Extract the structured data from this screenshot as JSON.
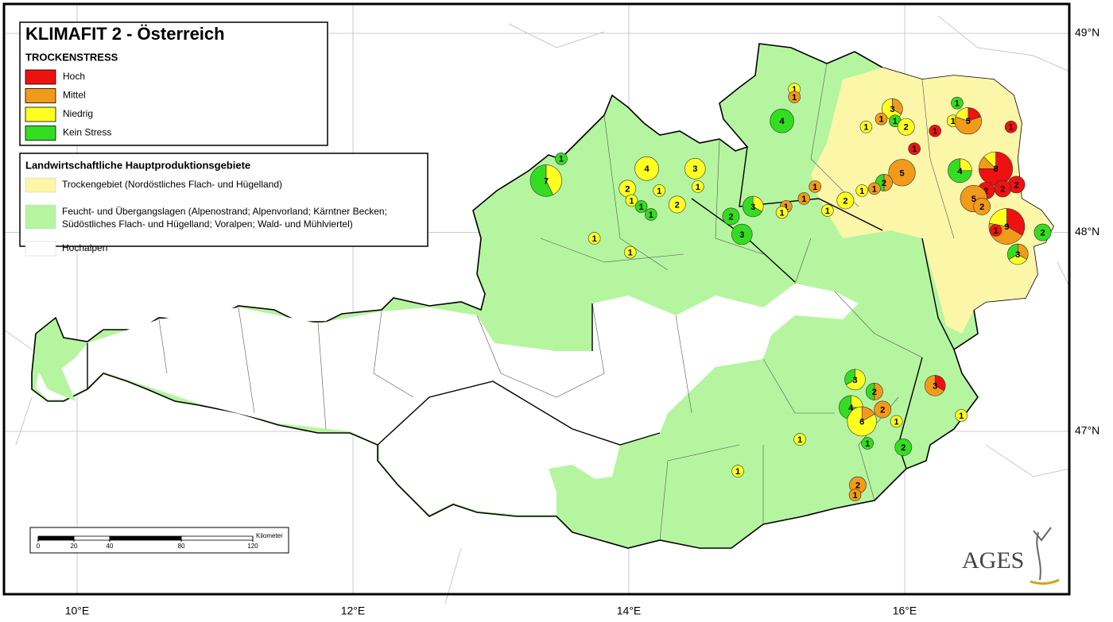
{
  "map": {
    "title": "KLIMAFIT 2 - Österreich",
    "stress_legend": {
      "title": "TROCKENSTRESS",
      "classes": [
        {
          "label": "Hoch",
          "color": "#ee1111"
        },
        {
          "label": "Mittel",
          "color": "#f29a1a"
        },
        {
          "label": "Niedrig",
          "color": "#ffff22"
        },
        {
          "label": "Kein Stress",
          "color": "#33dd22"
        }
      ]
    },
    "area_legend": {
      "title": "Landwirtschaftliche Hauptproduktionsgebiete",
      "items": [
        {
          "lines": [
            "Trockengebiet (Nordöstliches Flach- und Hügelland)"
          ],
          "color": "#fbf6a8"
        },
        {
          "lines": [
            "Feucht- und Übergangslagen (Alpenostrand; Alpenvorland; Kärntner Becken;",
            "Südöstliches Flach- und Hügelland; Voralpen; Wald- und Mühlviertel)"
          ],
          "color": "#b5f5a0"
        },
        {
          "lines": [
            "Hochalpen"
          ],
          "color": "#ffffff"
        }
      ]
    },
    "lon_ticks": [
      {
        "value": 10,
        "label": "10°E"
      },
      {
        "value": 12,
        "label": "12°E"
      },
      {
        "value": 14,
        "label": "14°E"
      },
      {
        "value": 16,
        "label": "16°E"
      }
    ],
    "lat_ticks": [
      {
        "value": 49,
        "label": "49°N"
      },
      {
        "value": 48,
        "label": "48°N"
      },
      {
        "value": 47,
        "label": "47°N"
      }
    ],
    "scale_bar": {
      "unit": "Kilometer",
      "ticks": [
        0,
        20,
        40,
        80,
        120
      ]
    },
    "logo": "AGES",
    "sites": [
      {
        "lon": 13.51,
        "lat": 48.37,
        "n": 1,
        "counts": [
          0,
          0,
          0,
          1
        ]
      },
      {
        "lon": 13.4,
        "lat": 48.26,
        "n": 7,
        "counts": [
          0,
          0,
          3,
          4
        ]
      },
      {
        "lon": 14.13,
        "lat": 48.32,
        "n": 4,
        "counts": [
          0,
          0,
          4,
          0
        ]
      },
      {
        "lon": 14.48,
        "lat": 48.32,
        "n": 3,
        "counts": [
          0,
          0,
          3,
          0
        ]
      },
      {
        "lon": 13.99,
        "lat": 48.22,
        "n": 2,
        "counts": [
          0,
          0,
          2,
          0
        ]
      },
      {
        "lon": 14.22,
        "lat": 48.21,
        "n": 1,
        "counts": [
          0,
          0,
          1,
          0
        ]
      },
      {
        "lon": 14.5,
        "lat": 48.23,
        "n": 1,
        "counts": [
          0,
          0,
          1,
          0
        ]
      },
      {
        "lon": 14.02,
        "lat": 48.16,
        "n": 1,
        "counts": [
          0,
          0,
          1,
          0
        ]
      },
      {
        "lon": 14.09,
        "lat": 48.13,
        "n": 1,
        "counts": [
          0,
          0,
          0,
          1
        ]
      },
      {
        "lon": 14.16,
        "lat": 48.09,
        "n": 1,
        "counts": [
          0,
          0,
          0,
          1
        ]
      },
      {
        "lon": 14.35,
        "lat": 48.14,
        "n": 2,
        "counts": [
          0,
          0,
          2,
          0
        ]
      },
      {
        "lon": 13.75,
        "lat": 47.97,
        "n": 1,
        "counts": [
          0,
          0,
          1,
          0
        ]
      },
      {
        "lon": 14.01,
        "lat": 47.9,
        "n": 1,
        "counts": [
          0,
          0,
          1,
          0
        ]
      },
      {
        "lon": 14.74,
        "lat": 48.08,
        "n": 2,
        "counts": [
          0,
          0,
          0,
          2
        ]
      },
      {
        "lon": 14.9,
        "lat": 48.13,
        "n": 3,
        "counts": [
          0,
          0,
          1,
          2
        ]
      },
      {
        "lon": 14.82,
        "lat": 47.99,
        "n": 3,
        "counts": [
          0,
          0,
          0,
          3
        ]
      },
      {
        "lon": 15.11,
        "lat": 48.56,
        "n": 4,
        "counts": [
          0,
          0,
          0,
          4
        ]
      },
      {
        "lon": 15.2,
        "lat": 48.72,
        "n": 1,
        "counts": [
          0,
          0,
          1,
          0
        ]
      },
      {
        "lon": 15.2,
        "lat": 48.68,
        "n": 1,
        "counts": [
          0,
          1,
          0,
          0
        ]
      },
      {
        "lon": 15.91,
        "lat": 48.62,
        "n": 3,
        "counts": [
          0,
          1,
          2,
          0
        ]
      },
      {
        "lon": 15.83,
        "lat": 48.57,
        "n": 1,
        "counts": [
          0,
          1,
          0,
          0
        ]
      },
      {
        "lon": 15.93,
        "lat": 48.56,
        "n": 1,
        "counts": [
          0,
          0,
          0,
          1
        ]
      },
      {
        "lon": 16.01,
        "lat": 48.53,
        "n": 2,
        "counts": [
          0,
          0,
          2,
          0
        ]
      },
      {
        "lon": 15.72,
        "lat": 48.53,
        "n": 1,
        "counts": [
          0,
          0,
          1,
          0
        ]
      },
      {
        "lon": 16.38,
        "lat": 48.65,
        "n": 1,
        "counts": [
          0,
          0,
          0,
          1
        ]
      },
      {
        "lon": 16.35,
        "lat": 48.56,
        "n": 1,
        "counts": [
          0,
          0,
          1,
          0
        ]
      },
      {
        "lon": 16.46,
        "lat": 48.56,
        "n": 5,
        "counts": [
          1,
          3,
          1,
          0
        ]
      },
      {
        "lon": 16.77,
        "lat": 48.53,
        "n": 1,
        "counts": [
          1,
          0,
          0,
          0
        ]
      },
      {
        "lon": 16.22,
        "lat": 48.51,
        "n": 1,
        "counts": [
          1,
          0,
          0,
          0
        ]
      },
      {
        "lon": 16.07,
        "lat": 48.42,
        "n": 1,
        "counts": [
          1,
          0,
          0,
          0
        ]
      },
      {
        "lon": 15.98,
        "lat": 48.3,
        "n": 5,
        "counts": [
          0,
          5,
          0,
          0
        ]
      },
      {
        "lon": 15.85,
        "lat": 48.25,
        "n": 2,
        "counts": [
          0,
          1,
          0,
          1
        ]
      },
      {
        "lon": 15.78,
        "lat": 48.22,
        "n": 1,
        "counts": [
          0,
          1,
          0,
          0
        ]
      },
      {
        "lon": 15.69,
        "lat": 48.21,
        "n": 1,
        "counts": [
          0,
          0,
          1,
          0
        ]
      },
      {
        "lon": 15.57,
        "lat": 48.16,
        "n": 2,
        "counts": [
          0,
          0,
          2,
          0
        ]
      },
      {
        "lon": 15.35,
        "lat": 48.23,
        "n": 1,
        "counts": [
          0,
          1,
          0,
          0
        ]
      },
      {
        "lon": 15.44,
        "lat": 48.11,
        "n": 1,
        "counts": [
          0,
          0,
          1,
          0
        ]
      },
      {
        "lon": 15.27,
        "lat": 48.17,
        "n": 1,
        "counts": [
          0,
          1,
          0,
          0
        ]
      },
      {
        "lon": 15.14,
        "lat": 48.13,
        "n": 1,
        "counts": [
          0,
          1,
          0,
          0
        ]
      },
      {
        "lon": 15.11,
        "lat": 48.1,
        "n": 1,
        "counts": [
          0,
          0,
          1,
          0
        ]
      },
      {
        "lon": 16.4,
        "lat": 48.31,
        "n": 4,
        "counts": [
          0,
          0,
          1,
          3
        ]
      },
      {
        "lon": 16.66,
        "lat": 48.32,
        "n": 8,
        "counts": [
          6,
          1,
          1,
          0
        ]
      },
      {
        "lon": 16.81,
        "lat": 48.24,
        "n": 2,
        "counts": [
          2,
          0,
          0,
          0
        ]
      },
      {
        "lon": 16.71,
        "lat": 48.22,
        "n": 2,
        "counts": [
          2,
          0,
          0,
          0
        ]
      },
      {
        "lon": 16.59,
        "lat": 48.21,
        "n": 2,
        "counts": [
          2,
          0,
          0,
          0
        ]
      },
      {
        "lon": 16.5,
        "lat": 48.17,
        "n": 5,
        "counts": [
          0,
          5,
          0,
          0
        ]
      },
      {
        "lon": 16.56,
        "lat": 48.13,
        "n": 2,
        "counts": [
          0,
          2,
          0,
          0
        ]
      },
      {
        "lon": 16.74,
        "lat": 48.03,
        "n": 9,
        "counts": [
          3,
          4,
          2,
          0
        ]
      },
      {
        "lon": 16.66,
        "lat": 48.01,
        "n": 1,
        "counts": [
          1,
          0,
          0,
          0
        ]
      },
      {
        "lon": 17.0,
        "lat": 48.0,
        "n": 2,
        "counts": [
          0,
          0,
          0,
          2
        ]
      },
      {
        "lon": 16.82,
        "lat": 47.89,
        "n": 3,
        "counts": [
          0,
          1,
          1,
          1
        ]
      },
      {
        "lon": 15.64,
        "lat": 47.26,
        "n": 3,
        "counts": [
          0,
          0,
          2,
          1
        ]
      },
      {
        "lon": 15.78,
        "lat": 47.2,
        "n": 2,
        "counts": [
          0,
          1,
          0,
          1
        ]
      },
      {
        "lon": 15.61,
        "lat": 47.12,
        "n": 4,
        "counts": [
          0,
          0,
          1,
          3
        ]
      },
      {
        "lon": 15.84,
        "lat": 47.11,
        "n": 2,
        "counts": [
          0,
          2,
          0,
          0
        ]
      },
      {
        "lon": 15.69,
        "lat": 47.05,
        "n": 6,
        "counts": [
          0,
          1,
          5,
          0
        ]
      },
      {
        "lon": 15.94,
        "lat": 47.05,
        "n": 1,
        "counts": [
          0,
          0,
          1,
          0
        ]
      },
      {
        "lon": 15.73,
        "lat": 46.94,
        "n": 1,
        "counts": [
          0,
          0,
          0,
          1
        ]
      },
      {
        "lon": 15.24,
        "lat": 46.96,
        "n": 1,
        "counts": [
          0,
          0,
          1,
          0
        ]
      },
      {
        "lon": 15.99,
        "lat": 46.92,
        "n": 2,
        "counts": [
          0,
          0,
          0,
          2
        ]
      },
      {
        "lon": 16.22,
        "lat": 47.23,
        "n": 3,
        "counts": [
          1,
          2,
          0,
          0
        ]
      },
      {
        "lon": 16.41,
        "lat": 47.08,
        "n": 1,
        "counts": [
          0,
          0,
          1,
          0
        ]
      },
      {
        "lon": 14.79,
        "lat": 46.8,
        "n": 1,
        "counts": [
          0,
          0,
          1,
          0
        ]
      },
      {
        "lon": 15.66,
        "lat": 46.73,
        "n": 2,
        "counts": [
          0,
          2,
          0,
          0
        ]
      },
      {
        "lon": 15.64,
        "lat": 46.68,
        "n": 1,
        "counts": [
          0,
          1,
          0,
          0
        ]
      }
    ]
  }
}
